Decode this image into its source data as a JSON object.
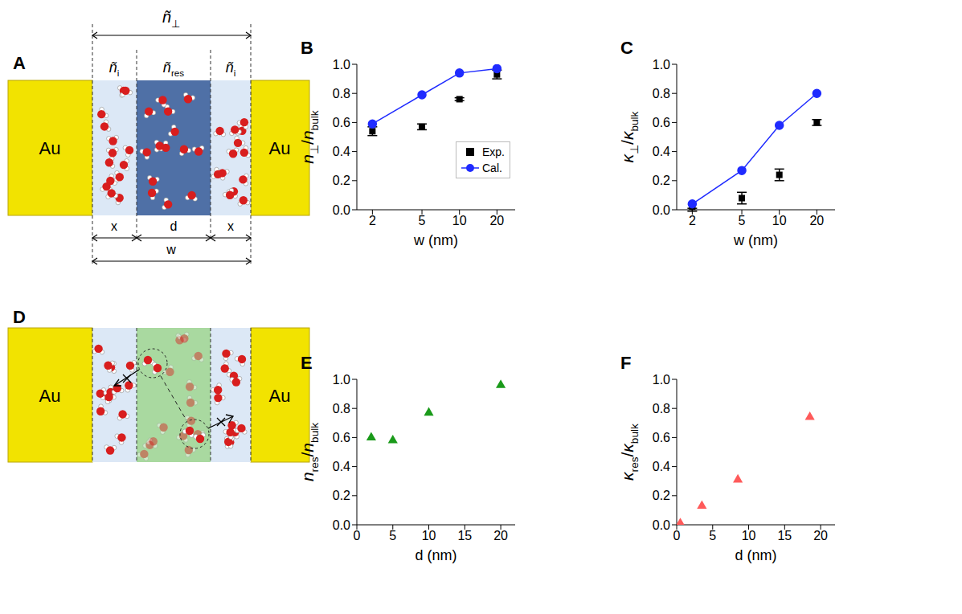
{
  "diagram_A": {
    "panel": "A",
    "metal": "Au",
    "n_perp": [
      {
        "text": "ñ",
        "italic": true
      },
      {
        "text": "⊥",
        "sub": true
      }
    ],
    "n_i": [
      {
        "text": "ñ",
        "italic": true
      },
      {
        "text": "i",
        "sub": true
      }
    ],
    "n_res": [
      {
        "text": "ñ",
        "italic": true
      },
      {
        "text": "res",
        "sub": true
      }
    ],
    "x": "x",
    "d": "d",
    "w": "w"
  },
  "diagram_D": {
    "panel": "D",
    "metal": "Au"
  },
  "chart_data": [
    {
      "panel": "B",
      "type": "line",
      "xlabel": [
        {
          "text": "w (nm)"
        }
      ],
      "ylabel": [
        {
          "text": "n",
          "italic": true
        },
        {
          "text": "⊥",
          "sub": true
        },
        {
          "text": "/"
        },
        {
          "text": "n",
          "italic": true
        },
        {
          "text": "bulk",
          "sub": true
        }
      ],
      "log": "x",
      "xlim": [
        1.5,
        28
      ],
      "xticks": [
        2,
        5,
        10,
        20
      ],
      "ylim": [
        0,
        1
      ],
      "yticks": [
        {
          "value": 0,
          "label": "0.0"
        },
        {
          "value": 0.2,
          "label": "0.2"
        },
        {
          "value": 0.4,
          "label": "0.4"
        },
        {
          "value": 0.6,
          "label": "0.6"
        },
        {
          "value": 0.8,
          "label": "0.8"
        },
        {
          "value": 1,
          "label": "1.0"
        }
      ],
      "legend": "lower right",
      "x": [
        2,
        5,
        10,
        20
      ],
      "series": [
        {
          "name": "Exp.",
          "type": "scatter",
          "marker": "square",
          "color": "#000000",
          "values": [
            0.54,
            0.57,
            0.76,
            0.93
          ],
          "errors": [
            0.03,
            0.02,
            0.01,
            0.03
          ]
        },
        {
          "name": "Cal.",
          "type": "line",
          "marker": "circle",
          "color": "#1f2bff",
          "values": [
            0.59,
            0.79,
            0.94,
            0.97
          ]
        }
      ]
    },
    {
      "panel": "C",
      "type": "line",
      "xlabel": [
        {
          "text": "w (nm)"
        }
      ],
      "ylabel": [
        {
          "text": "κ",
          "italic": true
        },
        {
          "text": "⊥",
          "sub": true
        },
        {
          "text": "/"
        },
        {
          "text": "κ",
          "italic": true
        },
        {
          "text": "bulk",
          "sub": true
        }
      ],
      "log": "x",
      "xlim": [
        1.5,
        28
      ],
      "xticks": [
        2,
        5,
        10,
        20
      ],
      "ylim": [
        0,
        1
      ],
      "yticks": [
        {
          "value": 0,
          "label": "0.0"
        },
        {
          "value": 0.2,
          "label": "0.2"
        },
        {
          "value": 0.4,
          "label": "0.4"
        },
        {
          "value": 0.6,
          "label": "0.6"
        },
        {
          "value": 0.8,
          "label": "0.8"
        },
        {
          "value": 1,
          "label": "1.0"
        }
      ],
      "x": [
        2,
        5,
        10,
        20
      ],
      "series": [
        {
          "type": "scatter",
          "marker": "square",
          "color": "#000000",
          "values": [
            0.0,
            0.08,
            0.24,
            0.6
          ],
          "errors": [
            0.01,
            0.04,
            0.04,
            0.02
          ]
        },
        {
          "type": "line",
          "marker": "circle",
          "color": "#1f2bff",
          "values": [
            0.04,
            0.27,
            0.58,
            0.8
          ]
        }
      ]
    },
    {
      "panel": "E",
      "type": "scatter",
      "xlabel": [
        {
          "text": "d (nm)"
        }
      ],
      "ylabel": [
        {
          "text": "n",
          "italic": true
        },
        {
          "text": "res",
          "sub": true
        },
        {
          "text": "/"
        },
        {
          "text": "n",
          "italic": true
        },
        {
          "text": "bulk",
          "sub": true
        }
      ],
      "xlim": [
        0,
        22
      ],
      "xticks": [
        0,
        5,
        10,
        15,
        20
      ],
      "ylim": [
        0,
        1
      ],
      "yticks": [
        {
          "value": 0,
          "label": "0.0"
        },
        {
          "value": 0.2,
          "label": "0.2"
        },
        {
          "value": 0.4,
          "label": "0.4"
        },
        {
          "value": 0.6,
          "label": "0.6"
        },
        {
          "value": 0.8,
          "label": "0.8"
        },
        {
          "value": 1,
          "label": "1.0"
        }
      ],
      "x": [
        2,
        5,
        10,
        20
      ],
      "series": [
        {
          "type": "scatter",
          "marker": "triangle",
          "color": "#1a9a1a",
          "values": [
            0.6,
            0.58,
            0.77,
            0.96
          ]
        }
      ]
    },
    {
      "panel": "F",
      "type": "scatter",
      "xlabel": [
        {
          "text": "d (nm)"
        }
      ],
      "ylabel": [
        {
          "text": "κ",
          "italic": true
        },
        {
          "text": "res",
          "sub": true
        },
        {
          "text": "/"
        },
        {
          "text": "κ",
          "italic": true
        },
        {
          "text": "bulk",
          "sub": true
        }
      ],
      "xlim": [
        0,
        22
      ],
      "xticks": [
        0,
        5,
        10,
        15,
        20
      ],
      "ylim": [
        0,
        1
      ],
      "yticks": [
        {
          "value": 0,
          "label": "0.0"
        },
        {
          "value": 0.2,
          "label": "0.2"
        },
        {
          "value": 0.4,
          "label": "0.4"
        },
        {
          "value": 0.6,
          "label": "0.6"
        },
        {
          "value": 0.8,
          "label": "0.8"
        },
        {
          "value": 1,
          "label": "1.0"
        }
      ],
      "x": [
        0.5,
        3.5,
        8.5,
        18.5
      ],
      "series": [
        {
          "type": "scatter",
          "marker": "triangle",
          "color": "#ff5a5a",
          "values": [
            0.01,
            0.13,
            0.31,
            0.74
          ]
        }
      ]
    }
  ]
}
